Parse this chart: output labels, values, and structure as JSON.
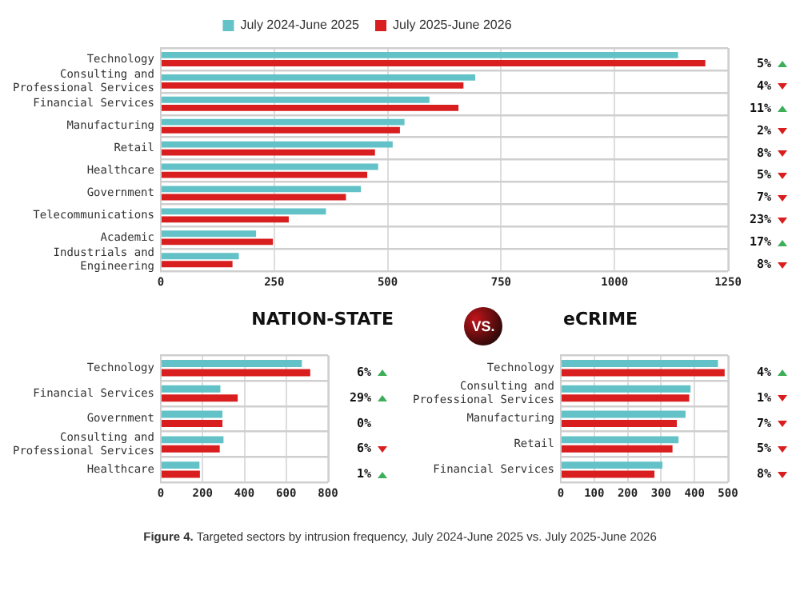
{
  "chart_data": [
    {
      "type": "bar",
      "orientation": "horizontal",
      "legend": "top",
      "grid": true,
      "categories": [
        "Technology",
        "Consulting and Professional Services",
        "Financial Services",
        "Manufacturing",
        "Retail",
        "Healthcare",
        "Government",
        "Telecommunications",
        "Academic",
        "Industrials and Engineering"
      ],
      "series": [
        {
          "name": "July 2024-June 2025",
          "color": "#62c2c7",
          "values": [
            1140,
            693,
            592,
            537,
            511,
            479,
            441,
            364,
            210,
            172
          ]
        },
        {
          "name": "July 2025-June 2026",
          "color": "#d81e1e",
          "values": [
            1200,
            667,
            656,
            527,
            472,
            455,
            408,
            282,
            247,
            158
          ]
        }
      ],
      "xlim": [
        0,
        1250
      ],
      "xticks": [
        0,
        250,
        500,
        750,
        1000,
        1250
      ],
      "annotations": [
        "5%",
        "4%",
        "11%",
        "2%",
        "8%",
        "5%",
        "7%",
        "23%",
        "17%",
        "8%",
        "Figure 4. Targeted sectors by intrusion frequency, July 2024-June 2025 vs. July 2025-June 2026"
      ]
    },
    {
      "type": "bar",
      "orientation": "horizontal",
      "title": "NATION-STATE",
      "grid": true,
      "categories": [
        "Technology",
        "Financial Services",
        "Government",
        "Consulting and Professional Services",
        "Healthcare"
      ],
      "series": [
        {
          "color": "#62c2c7",
          "values": [
            675,
            285,
            295,
            300,
            185
          ]
        },
        {
          "color": "#d81e1e",
          "values": [
            715,
            368,
            295,
            282,
            187
          ]
        }
      ],
      "xlim": [
        0,
        800
      ],
      "xticks": [
        0,
        200,
        400,
        600,
        800
      ],
      "annotations": [
        "6%",
        "29%",
        "0%",
        "6%",
        "1%",
        "VS."
      ]
    },
    {
      "type": "bar",
      "orientation": "horizontal",
      "title": "eCRIME",
      "grid": true,
      "categories": [
        "Technology",
        "Consulting and Professional Services",
        "Manufacturing",
        "Retail",
        "Financial Services"
      ],
      "series": [
        {
          "color": "#62c2c7",
          "values": [
            470,
            388,
            373,
            352,
            304
          ]
        },
        {
          "color": "#d81e1e",
          "values": [
            490,
            384,
            347,
            334,
            280
          ]
        }
      ],
      "xlim": [
        0,
        500
      ],
      "xticks": [
        0,
        100,
        200,
        300,
        400,
        500
      ],
      "annotations": [
        "4%",
        "1%",
        "7%",
        "5%",
        "8%"
      ]
    }
  ]
}
